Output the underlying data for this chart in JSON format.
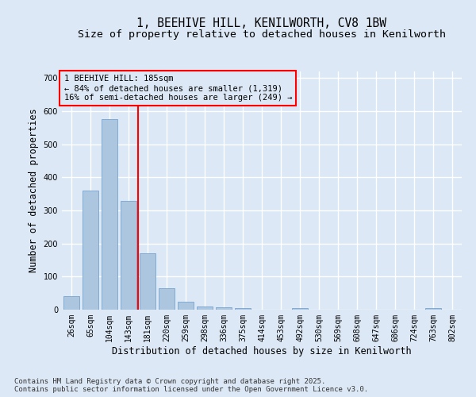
{
  "title_line1": "1, BEEHIVE HILL, KENILWORTH, CV8 1BW",
  "title_line2": "Size of property relative to detached houses in Kenilworth",
  "xlabel": "Distribution of detached houses by size in Kenilworth",
  "ylabel": "Number of detached properties",
  "categories": [
    "26sqm",
    "65sqm",
    "104sqm",
    "143sqm",
    "181sqm",
    "220sqm",
    "259sqm",
    "298sqm",
    "336sqm",
    "375sqm",
    "414sqm",
    "453sqm",
    "492sqm",
    "530sqm",
    "569sqm",
    "608sqm",
    "647sqm",
    "686sqm",
    "724sqm",
    "763sqm",
    "802sqm"
  ],
  "values": [
    42,
    360,
    575,
    328,
    170,
    65,
    25,
    10,
    8,
    5,
    0,
    0,
    5,
    0,
    0,
    0,
    0,
    0,
    0,
    4,
    0
  ],
  "bar_color": "#adc6e0",
  "bar_edge_color": "#6699cc",
  "vline_color": "red",
  "vline_x_index": 4,
  "annotation_title": "1 BEEHIVE HILL: 185sqm",
  "annotation_line2": "← 84% of detached houses are smaller (1,319)",
  "annotation_line3": "16% of semi-detached houses are larger (249) →",
  "annotation_box_color": "red",
  "ylim": [
    0,
    720
  ],
  "yticks": [
    0,
    100,
    200,
    300,
    400,
    500,
    600,
    700
  ],
  "bg_color": "#dce8f5",
  "grid_color": "white",
  "footer_line1": "Contains HM Land Registry data © Crown copyright and database right 2025.",
  "footer_line2": "Contains public sector information licensed under the Open Government Licence v3.0.",
  "title_fontsize": 10.5,
  "subtitle_fontsize": 9.5,
  "axis_label_fontsize": 8.5,
  "tick_fontsize": 7,
  "annotation_fontsize": 7.5,
  "footer_fontsize": 6.5
}
